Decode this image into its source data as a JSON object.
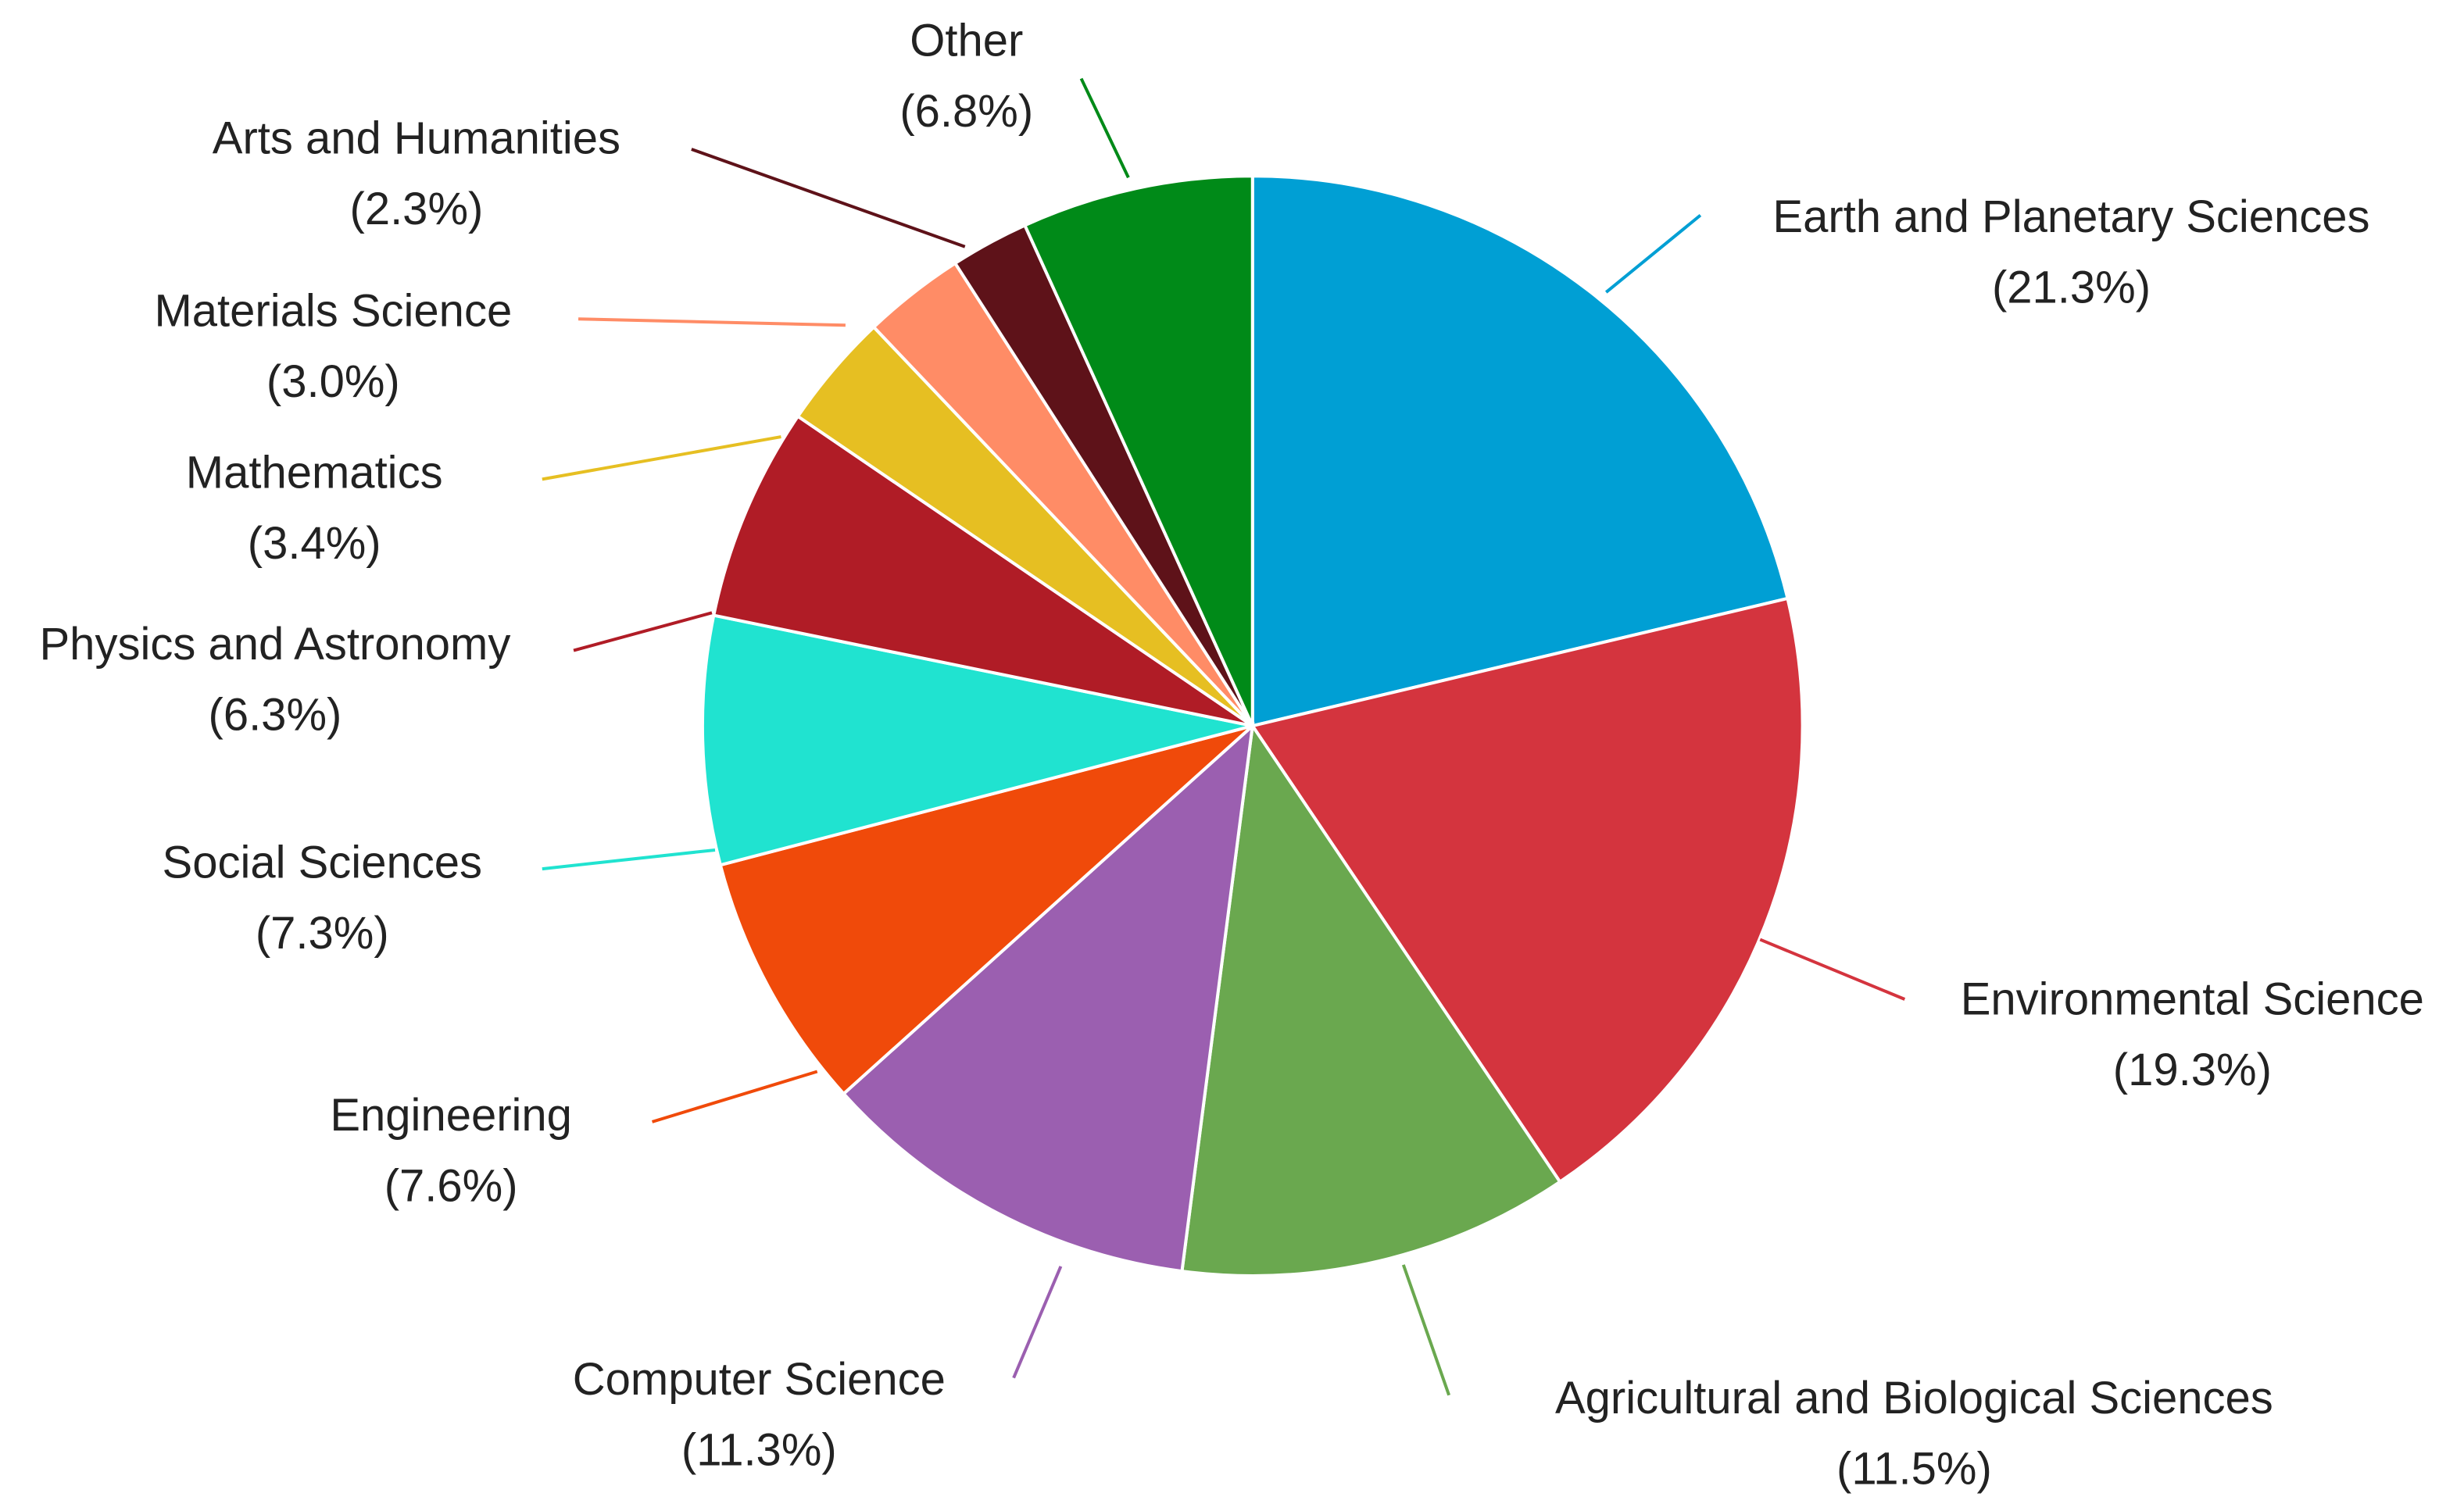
{
  "chart_data": {
    "type": "pie",
    "categories": [
      "Earth and Planetary Sciences",
      "Environmental Science",
      "Agricultural and Biological Sciences",
      "Computer Science",
      "Engineering",
      "Social Sciences",
      "Physics and Astronomy",
      "Mathematics",
      "Materials Science",
      "Arts and Humanities",
      "Other"
    ],
    "values": [
      21.3,
      19.3,
      11.5,
      11.3,
      7.6,
      7.3,
      6.3,
      3.4,
      3.0,
      2.3,
      6.8
    ],
    "value_labels": [
      "(21.3%)",
      "(19.3%)",
      "(11.5%)",
      "(11.3%)",
      "(7.6%)",
      "(7.3%)",
      "(6.3%)",
      "(3.4%)",
      "(3.0%)",
      "(2.3%)",
      "(6.8%)"
    ],
    "colors": [
      "#009fd4",
      "#d4343e",
      "#6aa84f",
      "#9b5fb0",
      "#f04a0a",
      "#20e3d0",
      "#b01c26",
      "#e6bf22",
      "#ff8c66",
      "#5e1219",
      "#008a18"
    ]
  }
}
